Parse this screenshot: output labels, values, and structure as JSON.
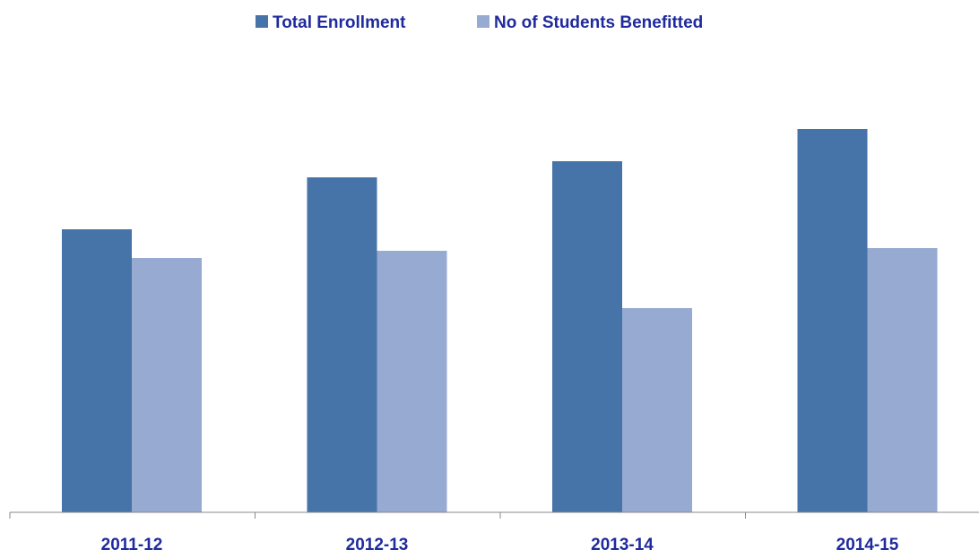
{
  "chart_data": {
    "type": "bar",
    "categories": [
      "2011-12",
      "2012-13",
      "2013-14",
      "2014-15"
    ],
    "series": [
      {
        "name": "Total Enrollment",
        "color": "#4674A8",
        "values": [
          316,
          374,
          392,
          428
        ]
      },
      {
        "name": "No of Students Benefitted",
        "color": "#96AAD2",
        "values": [
          284,
          292,
          228,
          295
        ]
      }
    ],
    "ylim": [
      0,
      570
    ],
    "grid": false,
    "legend_position": "top-center",
    "axis_color": "#888888",
    "label_color": "#1F2A9E"
  }
}
